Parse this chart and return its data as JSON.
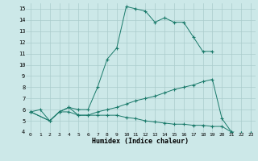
{
  "title": "",
  "xlabel": "Humidex (Indice chaleur)",
  "bg_color": "#cce8e8",
  "line_color": "#1a7a6a",
  "grid_color": "#aacccc",
  "xlim": [
    -0.5,
    23.5
  ],
  "ylim": [
    4,
    15.5
  ],
  "xticks": [
    0,
    1,
    2,
    3,
    4,
    5,
    6,
    7,
    8,
    9,
    10,
    11,
    12,
    13,
    14,
    15,
    16,
    17,
    18,
    19,
    20,
    21,
    22,
    23
  ],
  "yticks": [
    4,
    5,
    6,
    7,
    8,
    9,
    10,
    11,
    12,
    13,
    14,
    15
  ],
  "series": [
    {
      "x": [
        0,
        1,
        2,
        3,
        4,
        5,
        6,
        7,
        8,
        9,
        10,
        11,
        12,
        13,
        14,
        15,
        16,
        17,
        18,
        19
      ],
      "y": [
        5.8,
        6.0,
        5.0,
        5.8,
        6.2,
        6.0,
        6.0,
        8.0,
        10.5,
        11.5,
        15.2,
        15.0,
        14.8,
        13.8,
        14.2,
        13.8,
        13.8,
        12.5,
        11.2,
        11.2
      ]
    },
    {
      "x": [
        0,
        2,
        3,
        4,
        5,
        6,
        7,
        8,
        9,
        10,
        11,
        12,
        13,
        14,
        15,
        16,
        17,
        18,
        19,
        20,
        21,
        22,
        23
      ],
      "y": [
        5.8,
        5.0,
        5.8,
        5.8,
        5.5,
        5.5,
        5.8,
        6.0,
        6.2,
        6.5,
        6.8,
        7.0,
        7.2,
        7.5,
        7.8,
        8.0,
        8.2,
        8.5,
        8.7,
        5.2,
        4.0,
        3.9,
        3.9
      ]
    },
    {
      "x": [
        0,
        2,
        3,
        4,
        5,
        6,
        7,
        8,
        9,
        10,
        11,
        12,
        13,
        14,
        15,
        16,
        17,
        18,
        19,
        20,
        21,
        22,
        23
      ],
      "y": [
        5.8,
        5.0,
        5.8,
        6.2,
        5.5,
        5.5,
        5.5,
        5.5,
        5.5,
        5.3,
        5.2,
        5.0,
        4.9,
        4.8,
        4.7,
        4.7,
        4.6,
        4.6,
        4.5,
        4.5,
        4.0,
        3.9,
        3.9
      ]
    }
  ]
}
